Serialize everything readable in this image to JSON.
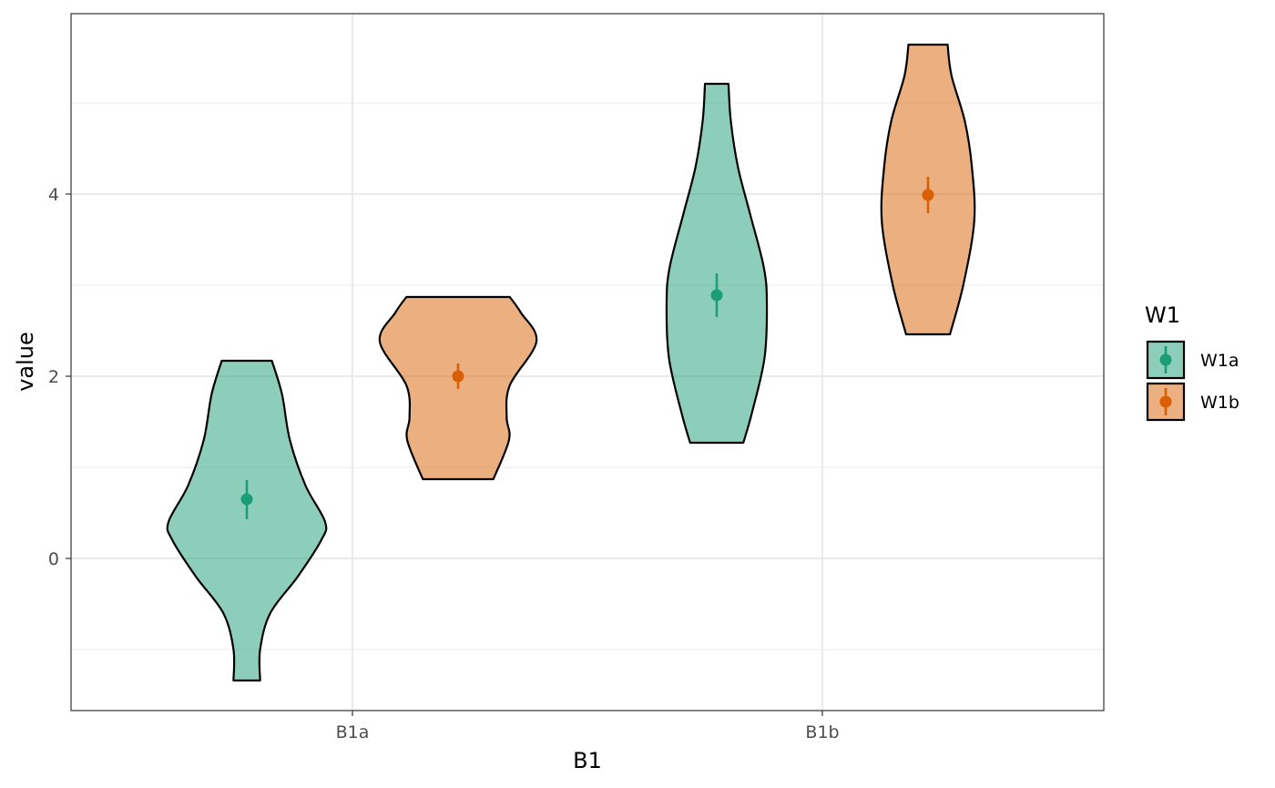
{
  "chart_data": {
    "type": "violin",
    "xlabel": "B1",
    "ylabel": "value",
    "categories": [
      "B1a",
      "B1b"
    ],
    "yticks": [
      0,
      2,
      4
    ],
    "ylim": [
      -1.67,
      5.98
    ],
    "grid": true,
    "legend": {
      "title": "W1",
      "placement": "right",
      "entries": [
        {
          "label": "W1a",
          "fill": "#1b9e77",
          "point": "#1b9e77"
        },
        {
          "label": "W1b",
          "fill": "#d95f02",
          "point": "#d95f02"
        }
      ]
    },
    "series": [
      {
        "name": "W1a",
        "fill": "#1b9e77",
        "violins": [
          {
            "category": "B1a",
            "mean": 0.65,
            "ci_low": 0.43,
            "ci_high": 0.86,
            "profile": [
              [
                -1.34,
                0.17
              ],
              [
                -1.0,
                0.17
              ],
              [
                -0.6,
                0.3
              ],
              [
                -0.2,
                0.65
              ],
              [
                0.2,
                0.95
              ],
              [
                0.4,
                1.0
              ],
              [
                0.8,
                0.75
              ],
              [
                1.3,
                0.55
              ],
              [
                1.8,
                0.45
              ],
              [
                2.17,
                0.32
              ]
            ]
          },
          {
            "category": "B1b",
            "mean": 2.89,
            "ci_low": 2.65,
            "ci_high": 3.13,
            "profile": [
              [
                1.27,
                0.34
              ],
              [
                1.6,
                0.45
              ],
              [
                2.2,
                0.61
              ],
              [
                2.8,
                0.64
              ],
              [
                3.2,
                0.6
              ],
              [
                3.8,
                0.42
              ],
              [
                4.3,
                0.27
              ],
              [
                4.8,
                0.18
              ],
              [
                5.21,
                0.15
              ]
            ]
          }
        ]
      },
      {
        "name": "W1b",
        "fill": "#d95f02",
        "violins": [
          {
            "category": "B1a",
            "mean": 2.0,
            "ci_low": 1.86,
            "ci_high": 2.14,
            "profile": [
              [
                0.87,
                0.45
              ],
              [
                1.3,
                0.65
              ],
              [
                1.55,
                0.62
              ],
              [
                1.9,
                0.66
              ],
              [
                2.38,
                1.0
              ],
              [
                2.7,
                0.8
              ],
              [
                2.87,
                0.66
              ]
            ]
          },
          {
            "category": "B1b",
            "mean": 3.99,
            "ci_low": 3.79,
            "ci_high": 4.19,
            "profile": [
              [
                2.46,
                0.28
              ],
              [
                3.0,
                0.45
              ],
              [
                3.7,
                0.59
              ],
              [
                4.3,
                0.56
              ],
              [
                4.8,
                0.47
              ],
              [
                5.3,
                0.3
              ],
              [
                5.64,
                0.25
              ]
            ]
          }
        ]
      }
    ]
  }
}
